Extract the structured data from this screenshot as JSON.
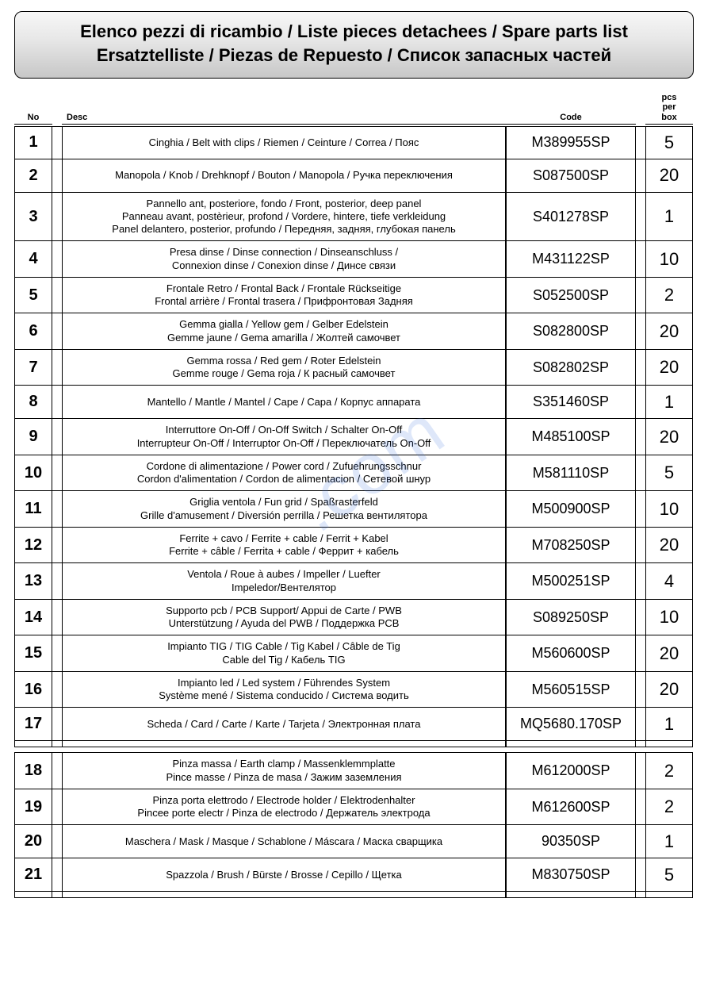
{
  "title": {
    "line1": "Elenco pezzi di ricambio / Liste pieces detachees / Spare parts list",
    "line2": "Ersatztelliste / Piezas de Repuesto / Список запасных частей"
  },
  "headers": {
    "no": "No",
    "desc": "Desc",
    "code": "Code",
    "pcs": "pcs\nper\nbox"
  },
  "watermark": ".com",
  "groups": [
    {
      "rows": [
        {
          "no": "1",
          "desc": [
            "Cinghia / Belt with clips / Riemen / Ceinture / Correa / Пояс"
          ],
          "code": "M389955SP",
          "pcs": "5"
        },
        {
          "no": "2",
          "desc": [
            "Manopola / Knob / Drehknopf / Bouton / Manopola / Ручка переключения"
          ],
          "code": "S087500SP",
          "pcs": "20"
        },
        {
          "no": "3",
          "desc": [
            "Pannello ant, posteriore, fondo / Front, posterior, deep panel",
            "Panneau avant, postèrieur, profond / Vordere, hintere, tiefe verkleidung",
            "Panel delantero, posterior, profundo / Передняя, задняя, глубокая панель"
          ],
          "code": "S401278SP",
          "pcs": "1"
        },
        {
          "no": "4",
          "desc": [
            "Presa dinse / Dinse connection / Dinseanschluss /",
            "Connexion dinse / Conexion dinse / Динсе связи"
          ],
          "code": "M431122SP",
          "pcs": "10"
        },
        {
          "no": "5",
          "desc": [
            "Frontale Retro  / Frontal Back / Frontale Rückseitige",
            "Frontal arrière / Frontal trasera / Прифронтовая Задняя"
          ],
          "code": "S052500SP",
          "pcs": "2"
        },
        {
          "no": "6",
          "desc": [
            "Gemma gialla / Yellow gem / Gelber Edelstein",
            "Gemme jaune / Gema amarilla / Жолтей самочвет"
          ],
          "code": "S082800SP",
          "pcs": "20"
        },
        {
          "no": "7",
          "desc": [
            "Gemma rossa / Red gem / Roter Edelstein",
            "Gemme rouge / Gema roja / К расный самочвет"
          ],
          "code": "S082802SP",
          "pcs": "20"
        },
        {
          "no": "8",
          "desc": [
            "Mantello / Mantle / Mantel / Cape / Capa / Корпус аппарата"
          ],
          "code": "S351460SP",
          "pcs": "1"
        },
        {
          "no": "9",
          "desc": [
            "Interruttore On-Off / On-Off Switch / Schalter On-Off",
            "Interrupteur On-Off / Interruptor On-Off / Переключатель On-Off"
          ],
          "code": "M485100SP",
          "pcs": "20"
        },
        {
          "no": "10",
          "desc": [
            "Cordone di alimentazione / Power cord / Zufuehrungsschnur",
            "Cordon d'alimentation / Cordon de alimentacion / Сетевой шнур"
          ],
          "code": "M581110SP",
          "pcs": "5"
        },
        {
          "no": "11",
          "desc": [
            "Griglia ventola / Fun grid / Spaßrasterfeld",
            "Grille d'amusement / Diversión perrilla / Решетка вентилятора"
          ],
          "code": "M500900SP",
          "pcs": "10"
        },
        {
          "no": "12",
          "desc": [
            "Ferrite + cavo / Ferrite + cable / Ferrit + Kabel",
            "Ferrite + câble / Ferrita + cable / Феррит + кабель"
          ],
          "code": "M708250SP",
          "pcs": "20"
        },
        {
          "no": "13",
          "desc": [
            "Ventola / Roue à aubes / Impeller / Luefter",
            "Impeledor/Вентелятор"
          ],
          "code": "M500251SP",
          "pcs": "4"
        },
        {
          "no": "14",
          "desc": [
            "Supporto pcb / PCB Support/ Appui de Carte / PWB",
            "Unterstützung / Ayuda del PWB / Поддержка PCB"
          ],
          "code": "S089250SP",
          "pcs": "10"
        },
        {
          "no": "15",
          "desc": [
            "Impianto TIG / TIG Cable / Tig Kabel / Câble de Tig",
            "Cable del Tig / Кабель TIG"
          ],
          "code": "M560600SP",
          "pcs": "20"
        },
        {
          "no": "16",
          "desc": [
            "Impianto led / Led system / Führendes System",
            "Système mené / Sistema conducido / Система водить"
          ],
          "code": "M560515SP",
          "pcs": "20"
        },
        {
          "no": "17",
          "desc": [
            "Scheda / Card / Carte / Karte / Tarjeta / Электронная плата"
          ],
          "code": "MQ5680.170SP",
          "pcs": "1"
        }
      ]
    },
    {
      "rows": [
        {
          "no": "18",
          "desc": [
            "Pinza massa / Earth clamp / Massenklemmplatte",
            "Pince masse / Pinza de masa / Зажим заземления"
          ],
          "code": "M612000SP",
          "pcs": "2"
        },
        {
          "no": "19",
          "desc": [
            "Pinza porta elettrodo / Electrode holder / Elektrodenhalter",
            "Pincee porte electr / Pinza de electrodo / Держатель электрода"
          ],
          "code": "M612600SP",
          "pcs": "2"
        },
        {
          "no": "20",
          "desc": [
            "Maschera / Mask / Masque / Schablone / Máscara / Маска сварщика"
          ],
          "code": "90350SP",
          "pcs": "1"
        },
        {
          "no": "21",
          "desc": [
            "Spazzola / Brush / Bürste / Brosse / Cepillo / Щетка"
          ],
          "code": "M830750SP",
          "pcs": "5"
        }
      ]
    }
  ]
}
